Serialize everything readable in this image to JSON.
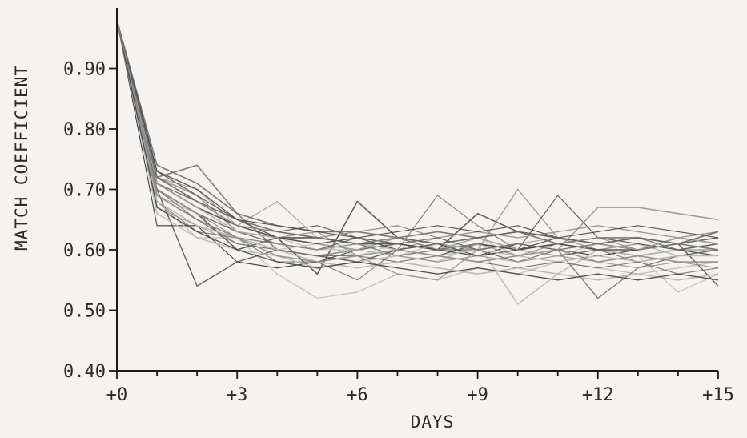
{
  "chart_data": {
    "type": "line",
    "title": "",
    "xlabel": "DAYS",
    "ylabel": "MATCH COEFFICIENT",
    "xlim": [
      0,
      15
    ],
    "ylim": [
      0.4,
      1.0
    ],
    "x_ticks": [
      0,
      3,
      6,
      9,
      12,
      15
    ],
    "x_tick_labels": [
      "+0",
      "+3",
      "+6",
      "+9",
      "+12",
      "+15"
    ],
    "x_minor_ticks": [
      1,
      2,
      4,
      5,
      7,
      8,
      10,
      11,
      13,
      14
    ],
    "y_ticks": [
      0.4,
      0.5,
      0.6,
      0.7,
      0.8,
      0.9
    ],
    "y_tick_labels": [
      "0.40",
      "0.50",
      "0.60",
      "0.70",
      "0.80",
      "0.90"
    ],
    "grid": false,
    "legend": "none",
    "line_color": "#1a1a1a",
    "x": [
      0,
      1,
      2,
      3,
      4,
      5,
      6,
      7,
      8,
      9,
      10,
      11,
      12,
      13,
      14,
      15
    ],
    "series": [
      {
        "values": [
          0.98,
          0.64,
          0.64,
          0.58,
          0.57,
          0.58,
          0.6,
          0.61,
          0.6,
          0.59,
          0.61,
          0.6,
          0.59,
          0.6,
          0.61,
          0.62
        ]
      },
      {
        "values": [
          0.98,
          0.7,
          0.54,
          0.58,
          0.6,
          0.59,
          0.58,
          0.6,
          0.59,
          0.61,
          0.6,
          0.59,
          0.6,
          0.59,
          0.6,
          0.61
        ]
      },
      {
        "values": [
          0.98,
          0.72,
          0.74,
          0.66,
          0.6,
          0.59,
          0.6,
          0.61,
          0.6,
          0.62,
          0.6,
          0.61,
          0.6,
          0.59,
          0.6,
          0.6
        ]
      },
      {
        "values": [
          0.98,
          0.72,
          0.7,
          0.64,
          0.68,
          0.62,
          0.61,
          0.6,
          0.62,
          0.6,
          0.61,
          0.62,
          0.6,
          0.61,
          0.59,
          0.6
        ]
      },
      {
        "values": [
          0.98,
          0.68,
          0.62,
          0.62,
          0.56,
          0.52,
          0.53,
          0.56,
          0.55,
          0.57,
          0.56,
          0.58,
          0.57,
          0.56,
          0.57,
          0.58
        ]
      },
      {
        "values": [
          0.98,
          0.7,
          0.66,
          0.6,
          0.62,
          0.56,
          0.68,
          0.62,
          0.6,
          0.66,
          0.63,
          0.62,
          0.61,
          0.6,
          0.62,
          0.61
        ]
      },
      {
        "values": [
          0.98,
          0.68,
          0.63,
          0.62,
          0.58,
          0.58,
          0.55,
          0.6,
          0.69,
          0.64,
          0.6,
          0.59,
          0.6,
          0.58,
          0.59,
          0.6
        ]
      },
      {
        "values": [
          0.98,
          0.71,
          0.67,
          0.63,
          0.62,
          0.63,
          0.59,
          0.56,
          0.55,
          0.6,
          0.7,
          0.62,
          0.6,
          0.61,
          0.6,
          0.59
        ]
      },
      {
        "values": [
          0.98,
          0.66,
          0.62,
          0.6,
          0.59,
          0.57,
          0.58,
          0.59,
          0.58,
          0.61,
          0.51,
          0.56,
          0.6,
          0.59,
          0.6,
          0.6
        ]
      },
      {
        "values": [
          0.98,
          0.71,
          0.68,
          0.64,
          0.63,
          0.64,
          0.62,
          0.61,
          0.6,
          0.59,
          0.6,
          0.69,
          0.62,
          0.61,
          0.6,
          0.59
        ]
      },
      {
        "values": [
          0.98,
          0.69,
          0.65,
          0.62,
          0.61,
          0.6,
          0.61,
          0.59,
          0.6,
          0.6,
          0.58,
          0.6,
          0.52,
          0.57,
          0.59,
          0.6
        ]
      },
      {
        "values": [
          0.98,
          0.72,
          0.69,
          0.63,
          0.62,
          0.61,
          0.6,
          0.62,
          0.61,
          0.6,
          0.61,
          0.6,
          0.67,
          0.67,
          0.66,
          0.65
        ]
      },
      {
        "values": [
          0.98,
          0.7,
          0.66,
          0.62,
          0.6,
          0.61,
          0.59,
          0.61,
          0.6,
          0.62,
          0.59,
          0.61,
          0.6,
          0.59,
          0.53,
          0.56
        ]
      },
      {
        "values": [
          0.98,
          0.73,
          0.7,
          0.65,
          0.62,
          0.61,
          0.62,
          0.6,
          0.61,
          0.59,
          0.6,
          0.62,
          0.61,
          0.6,
          0.61,
          0.54
        ]
      },
      {
        "values": [
          0.98,
          0.74,
          0.71,
          0.66,
          0.64,
          0.63,
          0.63,
          0.62,
          0.63,
          0.62,
          0.63,
          0.61,
          0.62,
          0.62,
          0.61,
          0.62
        ]
      },
      {
        "values": [
          0.98,
          0.67,
          0.64,
          0.61,
          0.6,
          0.59,
          0.6,
          0.59,
          0.58,
          0.59,
          0.58,
          0.59,
          0.58,
          0.57,
          0.58,
          0.57
        ]
      },
      {
        "values": [
          0.98,
          0.69,
          0.66,
          0.63,
          0.61,
          0.6,
          0.61,
          0.6,
          0.59,
          0.6,
          0.59,
          0.58,
          0.59,
          0.58,
          0.59,
          0.59
        ]
      },
      {
        "values": [
          0.98,
          0.71,
          0.67,
          0.64,
          0.62,
          0.62,
          0.61,
          0.61,
          0.6,
          0.61,
          0.6,
          0.61,
          0.6,
          0.6,
          0.61,
          0.6
        ]
      },
      {
        "values": [
          0.98,
          0.7,
          0.65,
          0.61,
          0.6,
          0.59,
          0.59,
          0.58,
          0.59,
          0.58,
          0.57,
          0.58,
          0.57,
          0.58,
          0.56,
          0.57
        ]
      },
      {
        "values": [
          0.98,
          0.72,
          0.68,
          0.64,
          0.63,
          0.62,
          0.63,
          0.64,
          0.62,
          0.63,
          0.62,
          0.63,
          0.64,
          0.63,
          0.62,
          0.63
        ]
      },
      {
        "values": [
          0.98,
          0.68,
          0.64,
          0.62,
          0.6,
          0.58,
          0.57,
          0.58,
          0.57,
          0.56,
          0.57,
          0.56,
          0.55,
          0.56,
          0.55,
          0.56
        ]
      },
      {
        "values": [
          0.98,
          0.73,
          0.69,
          0.65,
          0.64,
          0.63,
          0.62,
          0.63,
          0.64,
          0.63,
          0.64,
          0.62,
          0.63,
          0.64,
          0.63,
          0.62
        ]
      },
      {
        "values": [
          0.98,
          0.7,
          0.66,
          0.63,
          0.61,
          0.6,
          0.62,
          0.61,
          0.62,
          0.6,
          0.61,
          0.6,
          0.61,
          0.62,
          0.6,
          0.61
        ]
      },
      {
        "values": [
          0.98,
          0.69,
          0.65,
          0.62,
          0.59,
          0.58,
          0.59,
          0.6,
          0.59,
          0.58,
          0.59,
          0.6,
          0.58,
          0.59,
          0.58,
          0.58
        ]
      },
      {
        "values": [
          0.98,
          0.71,
          0.67,
          0.63,
          0.62,
          0.6,
          0.6,
          0.59,
          0.61,
          0.62,
          0.6,
          0.59,
          0.61,
          0.6,
          0.62,
          0.61
        ]
      },
      {
        "values": [
          0.98,
          0.67,
          0.63,
          0.6,
          0.58,
          0.57,
          0.58,
          0.57,
          0.56,
          0.57,
          0.56,
          0.55,
          0.56,
          0.55,
          0.56,
          0.55
        ]
      },
      {
        "values": [
          0.98,
          0.72,
          0.68,
          0.65,
          0.63,
          0.62,
          0.61,
          0.62,
          0.61,
          0.62,
          0.63,
          0.62,
          0.61,
          0.62,
          0.61,
          0.63
        ]
      },
      {
        "values": [
          0.98,
          0.7,
          0.66,
          0.62,
          0.61,
          0.6,
          0.61,
          0.62,
          0.6,
          0.61,
          0.59,
          0.61,
          0.62,
          0.6,
          0.61,
          0.6
        ]
      }
    ]
  }
}
